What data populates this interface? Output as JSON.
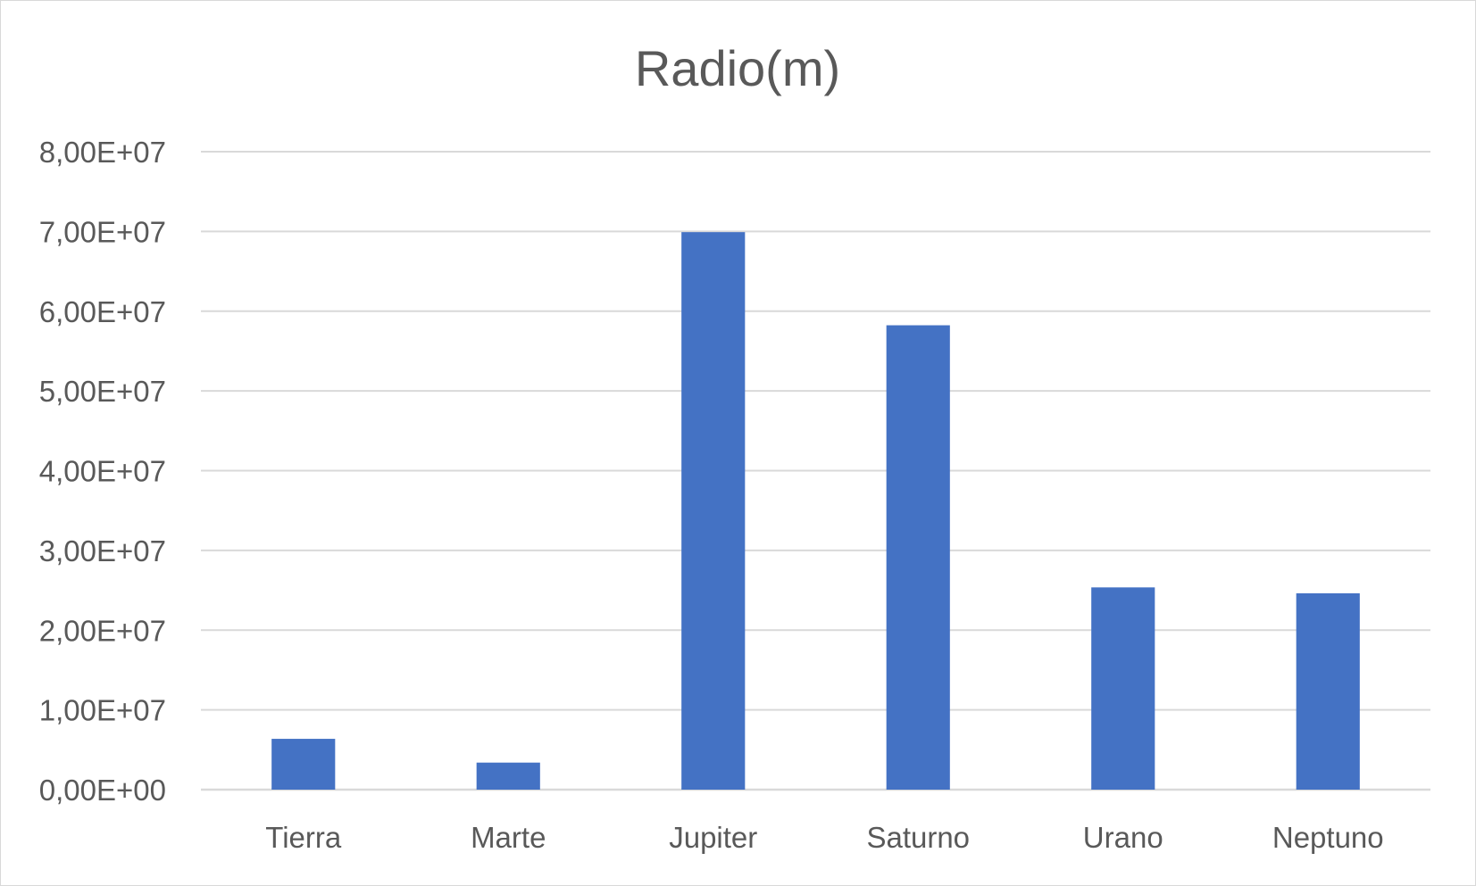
{
  "chart_data": {
    "type": "bar",
    "title": "Radio(m)",
    "categories": [
      "Tierra",
      "Marte",
      "Jupiter",
      "Saturno",
      "Urano",
      "Neptuno"
    ],
    "values": [
      6371000,
      3390000,
      69911000,
      58232000,
      25362000,
      24622000
    ],
    "ylim": [
      0,
      80000000
    ],
    "yticks": [
      0,
      10000000,
      20000000,
      30000000,
      40000000,
      50000000,
      60000000,
      70000000,
      80000000
    ],
    "ytick_labels": [
      "0,00E+00",
      "1,00E+07",
      "2,00E+07",
      "3,00E+07",
      "4,00E+07",
      "5,00E+07",
      "6,00E+07",
      "7,00E+07",
      "8,00E+07"
    ],
    "grid": true,
    "legend": "none",
    "bar_color": "#4472C4"
  }
}
